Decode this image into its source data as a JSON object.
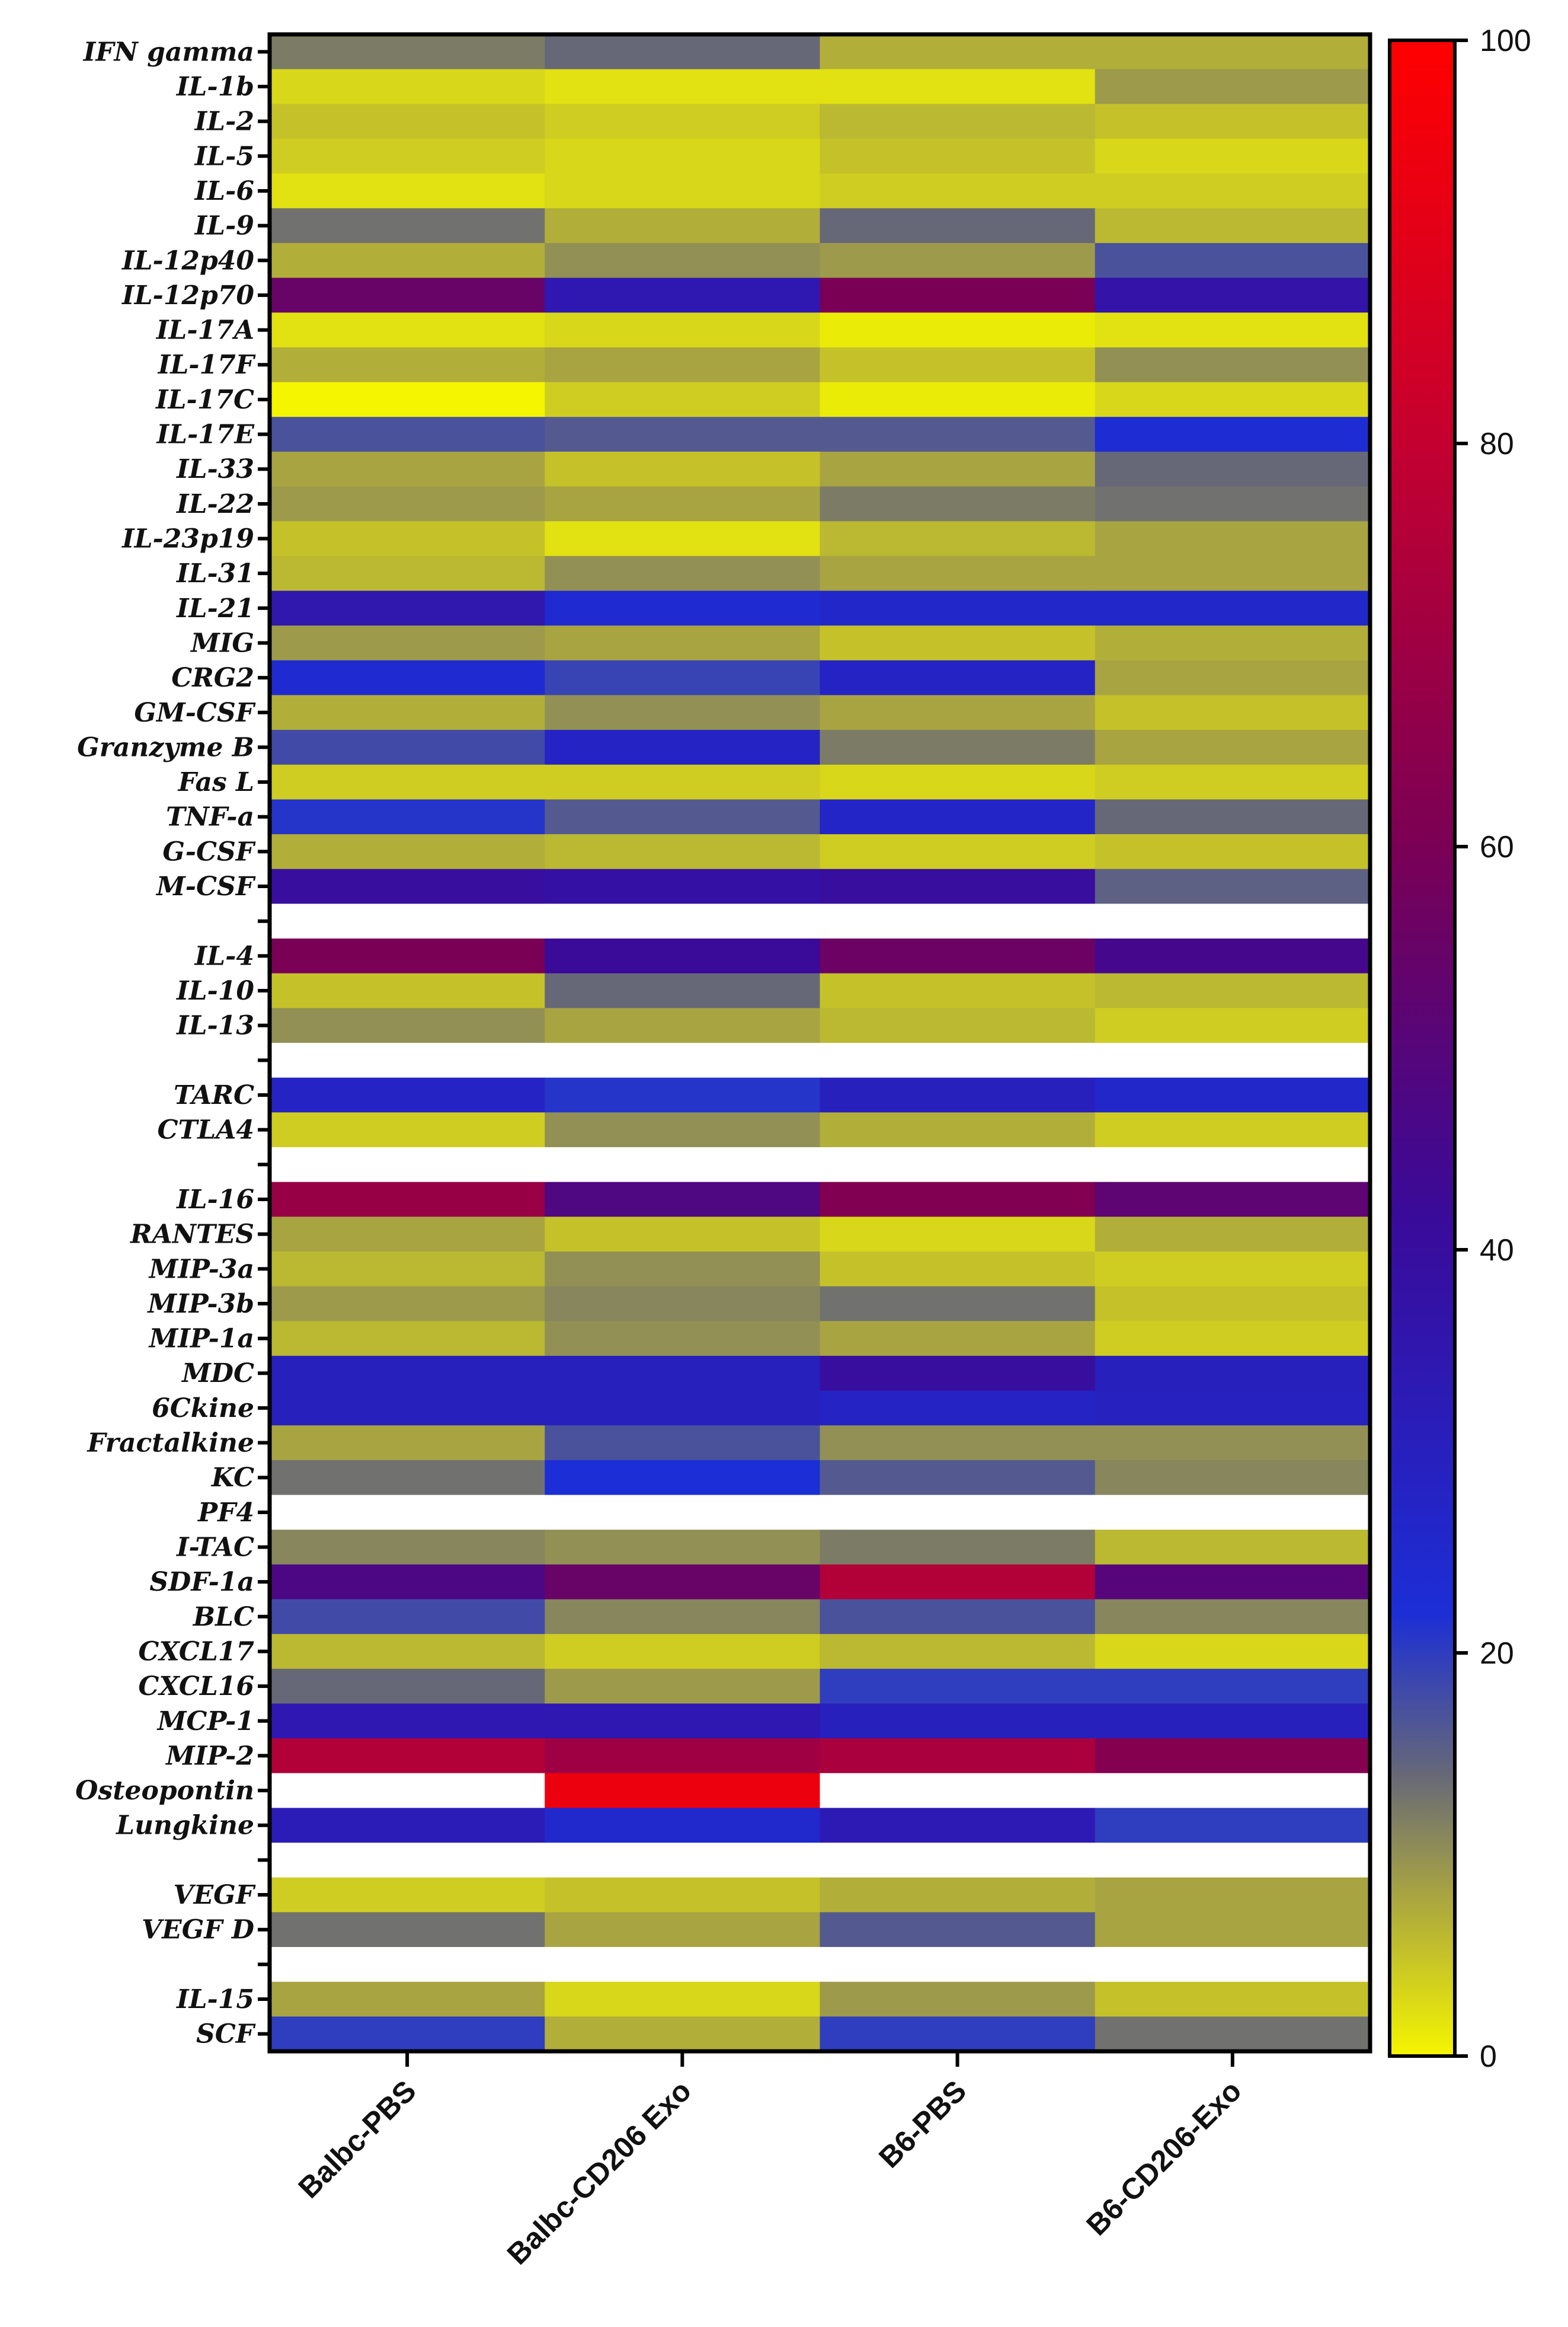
{
  "chart_data": {
    "type": "heatmap",
    "title": "",
    "xlabel": "",
    "ylabel": "",
    "columns": [
      "Balbc-PBS",
      "Balbc-CD206 Exo",
      "B6-PBS",
      "B6-CD206-Exo"
    ],
    "rows": [
      {
        "label": "IFN gamma",
        "values": [
          12,
          14,
          7,
          7
        ]
      },
      {
        "label": "IL-1b",
        "values": [
          3,
          2,
          2,
          9
        ]
      },
      {
        "label": "IL-2",
        "values": [
          5,
          4,
          6,
          5
        ]
      },
      {
        "label": "IL-5",
        "values": [
          4,
          3,
          5,
          3
        ]
      },
      {
        "label": "IL-6",
        "values": [
          2,
          3,
          4,
          4
        ]
      },
      {
        "label": "IL-9",
        "values": [
          13,
          7,
          14,
          6
        ]
      },
      {
        "label": "IL-12p40",
        "values": [
          7,
          10,
          9,
          17
        ]
      },
      {
        "label": "IL-12p70",
        "values": [
          55,
          34,
          60,
          37
        ]
      },
      {
        "label": "IL-17A",
        "values": [
          2,
          3,
          1,
          2
        ]
      },
      {
        "label": "IL-17F",
        "values": [
          7,
          8,
          5,
          10
        ]
      },
      {
        "label": "IL-17C",
        "values": [
          0,
          4,
          1,
          3
        ]
      },
      {
        "label": "IL-17E",
        "values": [
          17,
          16,
          16,
          23
        ]
      },
      {
        "label": "IL-33",
        "values": [
          8,
          5,
          8,
          14
        ]
      },
      {
        "label": "IL-22",
        "values": [
          9,
          8,
          12,
          13
        ]
      },
      {
        "label": "IL-23p19",
        "values": [
          5,
          2,
          6,
          8
        ]
      },
      {
        "label": "IL-31",
        "values": [
          6,
          10,
          8,
          8
        ]
      },
      {
        "label": "IL-21",
        "values": [
          35,
          24,
          26,
          26
        ]
      },
      {
        "label": "MIG",
        "values": [
          9,
          8,
          5,
          7
        ]
      },
      {
        "label": "CRG2",
        "values": [
          24,
          19,
          28,
          8
        ]
      },
      {
        "label": "GM-CSF",
        "values": [
          7,
          10,
          8,
          5
        ]
      },
      {
        "label": "Granzyme B",
        "values": [
          18,
          28,
          12,
          8
        ]
      },
      {
        "label": "Fas L",
        "values": [
          4,
          4,
          3,
          4
        ]
      },
      {
        "label": "TNF-a",
        "values": [
          21,
          16,
          27,
          14
        ]
      },
      {
        "label": "G-CSF",
        "values": [
          7,
          6,
          4,
          5
        ]
      },
      {
        "label": "M-CSF",
        "values": [
          40,
          38,
          40,
          15
        ]
      },
      {
        "label": "",
        "values": [
          null,
          null,
          null,
          null
        ]
      },
      {
        "label": "IL-4",
        "values": [
          60,
          42,
          56,
          45
        ]
      },
      {
        "label": "IL-10",
        "values": [
          5,
          14,
          5,
          6
        ]
      },
      {
        "label": "IL-13",
        "values": [
          10,
          8,
          6,
          4
        ]
      },
      {
        "label": "",
        "values": [
          null,
          null,
          null,
          null
        ]
      },
      {
        "label": "TARC",
        "values": [
          28,
          21,
          30,
          26
        ]
      },
      {
        "label": "CTLA4",
        "values": [
          4,
          10,
          7,
          4
        ]
      },
      {
        "label": "",
        "values": [
          null,
          null,
          null,
          null
        ]
      },
      {
        "label": "IL-16",
        "values": [
          68,
          48,
          62,
          52
        ]
      },
      {
        "label": "RANTES",
        "values": [
          8,
          5,
          3,
          7
        ]
      },
      {
        "label": "MIP-3a",
        "values": [
          6,
          10,
          5,
          4
        ]
      },
      {
        "label": "MIP-3b",
        "values": [
          9,
          11,
          13,
          5
        ]
      },
      {
        "label": "MIP-1a",
        "values": [
          6,
          10,
          8,
          4
        ]
      },
      {
        "label": "MDC",
        "values": [
          30,
          30,
          40,
          30
        ]
      },
      {
        "label": "6Ckine",
        "values": [
          30,
          30,
          28,
          29
        ]
      },
      {
        "label": "Fractalkine",
        "values": [
          8,
          17,
          10,
          10
        ]
      },
      {
        "label": "KC",
        "values": [
          13,
          22,
          16,
          11
        ]
      },
      {
        "label": "PF4",
        "values": [
          null,
          null,
          null,
          null
        ]
      },
      {
        "label": "I-TAC",
        "values": [
          11,
          10,
          12,
          6
        ]
      },
      {
        "label": "SDF-1a",
        "values": [
          47,
          55,
          75,
          50
        ]
      },
      {
        "label": "BLC",
        "values": [
          18,
          11,
          17,
          11
        ]
      },
      {
        "label": "CXCL17",
        "values": [
          6,
          4,
          6,
          3
        ]
      },
      {
        "label": "CXCL16",
        "values": [
          14,
          9,
          20,
          20
        ]
      },
      {
        "label": "MCP-1",
        "values": [
          34,
          34,
          30,
          30
        ]
      },
      {
        "label": "MIP-2",
        "values": [
          75,
          70,
          73,
          63
        ]
      },
      {
        "label": "Osteopontin",
        "values": [
          null,
          94,
          null,
          null
        ]
      },
      {
        "label": "Lungkine",
        "values": [
          32,
          25,
          33,
          20
        ]
      },
      {
        "label": "",
        "values": [
          null,
          null,
          null,
          null
        ]
      },
      {
        "label": "VEGF",
        "values": [
          4,
          5,
          7,
          8
        ]
      },
      {
        "label": "VEGF D",
        "values": [
          13,
          8,
          16,
          8
        ]
      },
      {
        "label": "",
        "values": [
          null,
          null,
          null,
          null
        ]
      },
      {
        "label": "IL-15",
        "values": [
          8,
          3,
          9,
          5
        ]
      },
      {
        "label": "SCF",
        "values": [
          20,
          7,
          20,
          13
        ]
      }
    ],
    "colorbar": {
      "min": 0,
      "max": 100,
      "ticks": [
        0,
        20,
        40,
        60,
        80,
        100
      ],
      "stops": [
        {
          "value": 0,
          "color": "#f5f500"
        },
        {
          "value": 8,
          "color": "#a8a442"
        },
        {
          "value": 14,
          "color": "#666878"
        },
        {
          "value": 22,
          "color": "#1c2ed6"
        },
        {
          "value": 42,
          "color": "#3a0a98"
        },
        {
          "value": 60,
          "color": "#7a0055"
        },
        {
          "value": 80,
          "color": "#c40030"
        },
        {
          "value": 100,
          "color": "#ff0000"
        }
      ]
    },
    "missing_color": "#ffffff",
    "grid": false,
    "legend": "colorbar-right"
  }
}
